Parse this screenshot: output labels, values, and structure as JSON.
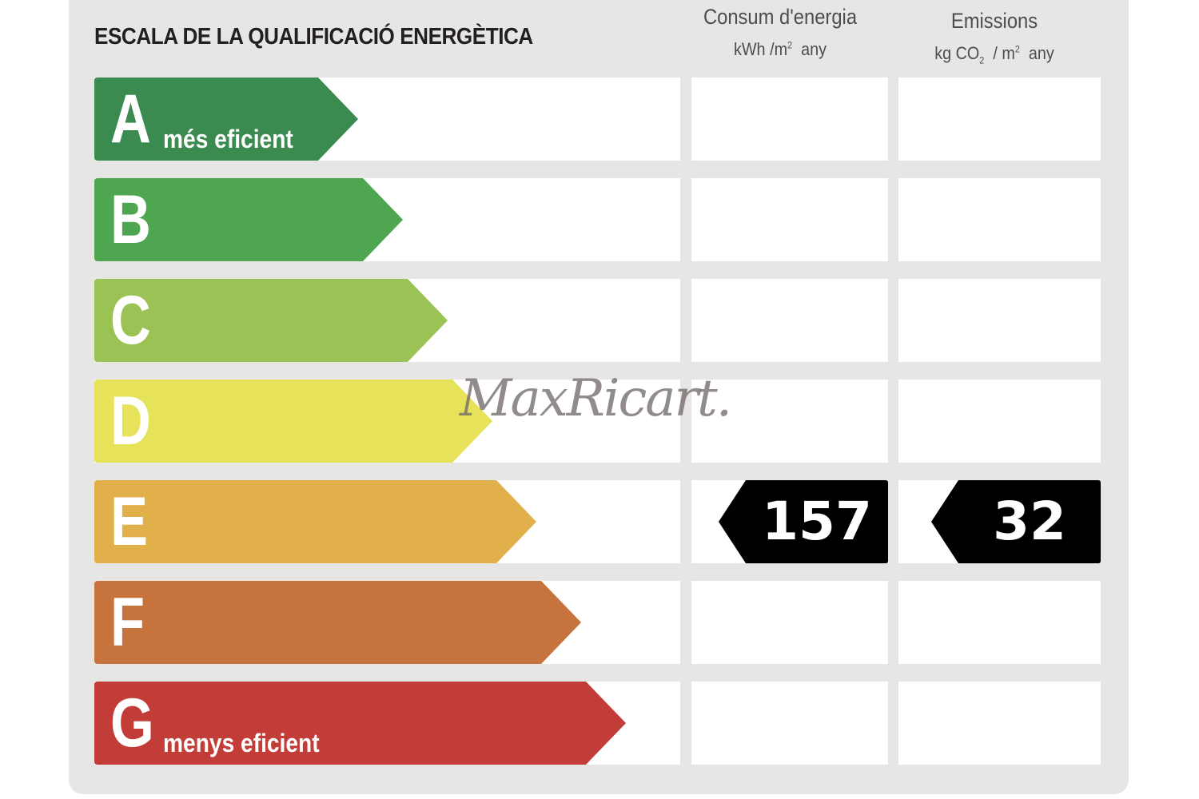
{
  "title": "ESCALA DE LA QUALIFICACIÓ ENERGÈTICA",
  "columns": {
    "energy": {
      "line1": "Consum d'energia",
      "unit_a": "kWh /m",
      "unit_sup": "2",
      "unit_b": "any"
    },
    "emissions": {
      "line1": "Emissions",
      "unit_a": "kg CO",
      "unit_sub": "2",
      "unit_mid": "/ m",
      "unit_sup": "2",
      "unit_b": "any"
    }
  },
  "ratings": [
    {
      "letter": "A",
      "note": "més eficient",
      "color": "#3b8a50"
    },
    {
      "letter": "B",
      "note": "",
      "color": "#4ea651"
    },
    {
      "letter": "C",
      "note": "",
      "color": "#9ac255"
    },
    {
      "letter": "D",
      "note": "",
      "color": "#e6e35a"
    },
    {
      "letter": "E",
      "note": "",
      "color": "#e1b04a"
    },
    {
      "letter": "F",
      "note": "",
      "color": "#c6733d"
    },
    {
      "letter": "G",
      "note": "menys eficient",
      "color": "#c33d38"
    }
  ],
  "result": {
    "rating": "E",
    "energy_value": "157",
    "emissions_value": "32",
    "badge_color": "#000000"
  },
  "watermark": "MaxRicart."
}
